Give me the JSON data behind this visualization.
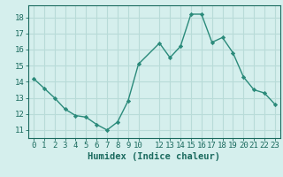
{
  "x": [
    0,
    1,
    2,
    3,
    4,
    5,
    6,
    7,
    8,
    9,
    10,
    12,
    13,
    14,
    15,
    16,
    17,
    18,
    19,
    20,
    21,
    22,
    23
  ],
  "y": [
    14.2,
    13.6,
    13.0,
    12.3,
    11.9,
    11.8,
    11.35,
    11.0,
    11.5,
    12.8,
    15.1,
    16.4,
    15.5,
    16.2,
    18.2,
    18.2,
    16.45,
    16.75,
    15.8,
    14.3,
    13.5,
    13.3,
    12.6
  ],
  "line_color": "#2a8a7a",
  "marker_color": "#2a8a7a",
  "bg_color": "#d5efed",
  "grid_color": "#b8dbd8",
  "axis_label_color": "#1a6a5e",
  "xlabel": "Humidex (Indice chaleur)",
  "xlim": [
    -0.5,
    23.5
  ],
  "ylim": [
    10.5,
    18.75
  ],
  "yticks": [
    11,
    12,
    13,
    14,
    15,
    16,
    17,
    18
  ],
  "xtick_positions": [
    0,
    1,
    2,
    3,
    4,
    5,
    6,
    7,
    8,
    9,
    10,
    12,
    13,
    14,
    15,
    16,
    17,
    18,
    19,
    20,
    21,
    22,
    23
  ],
  "xtick_labels": [
    "0",
    "1",
    "2",
    "3",
    "4",
    "5",
    "6",
    "7",
    "8",
    "9",
    "10",
    "12",
    "13",
    "14",
    "15",
    "16",
    "17",
    "18",
    "19",
    "20",
    "21",
    "22",
    "23"
  ],
  "xlabel_fontsize": 7.5,
  "tick_fontsize": 6.5
}
